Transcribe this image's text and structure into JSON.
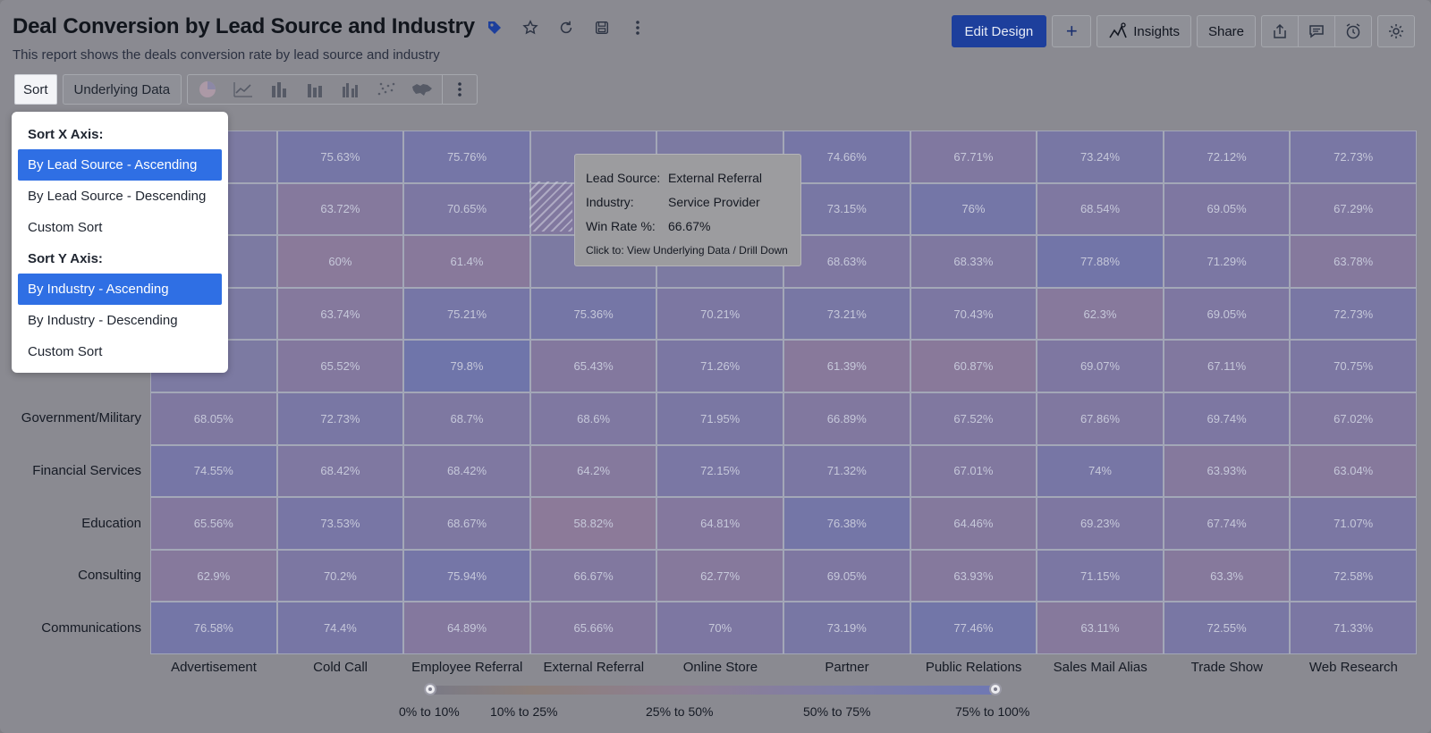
{
  "report": {
    "title": "Deal Conversion by Lead Source and Industry",
    "subtitle": "This report shows the deals conversion rate by lead source and industry"
  },
  "title_icons": [
    "tag-icon",
    "star-icon",
    "refresh-icon",
    "save-icon",
    "more-vertical-icon"
  ],
  "topbar": {
    "edit_design": "Edit Design",
    "add": "+",
    "insights": "Insights",
    "share": "Share",
    "icons": [
      "export-icon",
      "comment-icon",
      "alarm-icon",
      "settings-icon"
    ]
  },
  "toolbar": {
    "sort": "Sort",
    "underlying_data": "Underlying Data",
    "chart_types": [
      "pie-chart-icon",
      "line-chart-icon",
      "bar-chart-icon",
      "stacked-bar-icon",
      "grouped-bar-icon",
      "scatter-icon",
      "map-icon"
    ]
  },
  "sort_menu": {
    "x_header": "Sort X Axis:",
    "x_options": [
      "By Lead Source - Ascending",
      "By Lead Source - Descending",
      "Custom Sort"
    ],
    "x_selected": 0,
    "y_header": "Sort Y Axis:",
    "y_options": [
      "By Industry - Ascending",
      "By Industry - Descending",
      "Custom Sort"
    ],
    "y_selected": 0
  },
  "tooltip": {
    "lead_source_label": "Lead Source:",
    "lead_source_value": "External Referral",
    "industry_label": "Industry:",
    "industry_value": "Service Provider",
    "win_rate_label": "Win Rate %:",
    "win_rate_value": "66.67%",
    "footer": "Click to: View Underlying Data / Drill Down"
  },
  "colors": {
    "selected_menu": "#2f6fe4",
    "primary_button": "#1d3f9c",
    "cell_cool": "#6f74a8",
    "cell_warm": "#8a7a98"
  },
  "chart_data": {
    "type": "heatmap",
    "x_categories": [
      "Advertisement",
      "Cold Call",
      "Employee Referral",
      "External Referral",
      "Online Store",
      "Partner",
      "Public Relations",
      "Sales Mail Alias",
      "Trade Show",
      "Web Research"
    ],
    "y_categories_visible": [
      "Government/Military",
      "Financial Services",
      "Education",
      "Consulting",
      "Communications"
    ],
    "rows": [
      {
        "industry": "",
        "values": [
          "",
          "75.63%",
          "75.76%",
          "",
          "",
          "74.66%",
          "67.71%",
          "73.24%",
          "72.12%",
          "72.73%"
        ]
      },
      {
        "industry": "Service Provider",
        "values": [
          "",
          "63.72%",
          "70.65%",
          "66.67%",
          "",
          "73.15%",
          "76%",
          "68.54%",
          "69.05%",
          "67.29%"
        ]
      },
      {
        "industry": "",
        "values": [
          "",
          "60%",
          "61.4%",
          "",
          "",
          "68.63%",
          "68.33%",
          "77.88%",
          "71.29%",
          "63.78%"
        ]
      },
      {
        "industry": "",
        "values": [
          "",
          "63.74%",
          "75.21%",
          "75.36%",
          "70.21%",
          "73.21%",
          "70.43%",
          "62.3%",
          "69.05%",
          "72.73%"
        ]
      },
      {
        "industry": "",
        "values": [
          "",
          "65.52%",
          "79.8%",
          "65.43%",
          "71.26%",
          "61.39%",
          "60.87%",
          "69.07%",
          "67.11%",
          "70.75%"
        ]
      },
      {
        "industry": "Government/Military",
        "values": [
          "68.05%",
          "72.73%",
          "68.7%",
          "68.6%",
          "71.95%",
          "66.89%",
          "67.52%",
          "67.86%",
          "69.74%",
          "67.02%"
        ]
      },
      {
        "industry": "Financial Services",
        "values": [
          "74.55%",
          "68.42%",
          "68.42%",
          "64.2%",
          "72.15%",
          "71.32%",
          "67.01%",
          "74%",
          "63.93%",
          "63.04%"
        ]
      },
      {
        "industry": "Education",
        "values": [
          "65.56%",
          "73.53%",
          "68.67%",
          "58.82%",
          "64.81%",
          "76.38%",
          "64.46%",
          "69.23%",
          "67.74%",
          "71.07%"
        ]
      },
      {
        "industry": "Consulting",
        "values": [
          "62.9%",
          "70.2%",
          "75.94%",
          "66.67%",
          "62.77%",
          "69.05%",
          "63.93%",
          "71.15%",
          "63.3%",
          "72.58%"
        ]
      },
      {
        "industry": "Communications",
        "values": [
          "76.58%",
          "74.4%",
          "64.89%",
          "65.66%",
          "70%",
          "73.19%",
          "77.46%",
          "63.11%",
          "72.55%",
          "71.33%"
        ]
      }
    ],
    "legend": {
      "ranges": [
        "0% to 10%",
        "10% to 25%",
        "25% to 50%",
        "50% to 75%",
        "75% to 100%"
      ]
    }
  }
}
